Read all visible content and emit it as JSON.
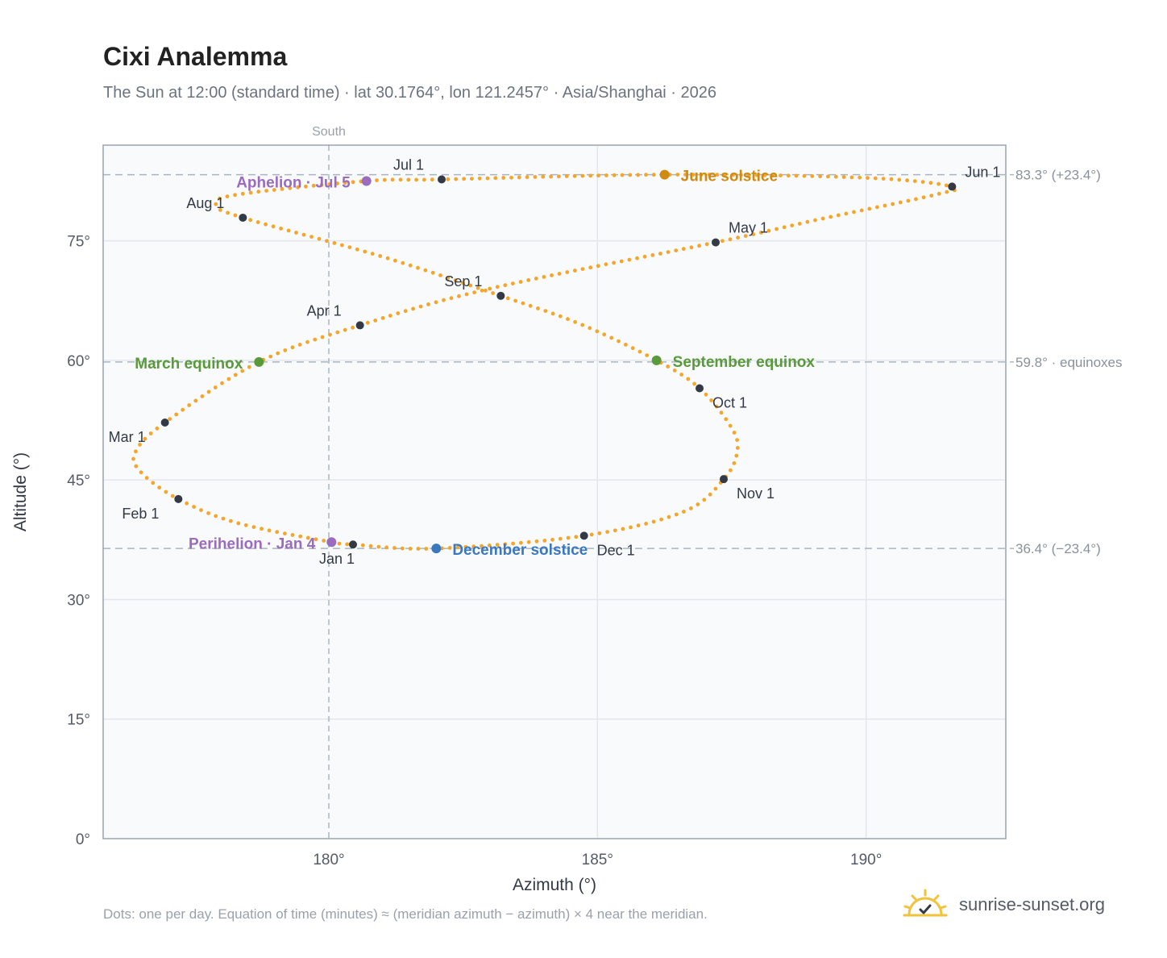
{
  "title": "Cixi Analemma",
  "subtitle": "The Sun at 12:00 (standard time) · lat 30.1764°, lon 121.2457° · Asia/Shanghai · 2026",
  "footnote": "Dots: one per day. Equation of time (minutes) ≈ (meridian azimuth − azimuth) × 4 near the meridian.",
  "brand": {
    "text": "sunrise-sunset.org",
    "icon": "sun-check-icon"
  },
  "colors": {
    "curve": "#f4a52a",
    "month_marker": "#333a45",
    "equinox": "#5a9a3a",
    "june_solstice": "#d08a10",
    "december_solstice": "#3a78c0",
    "apsis": "#9b6bbd",
    "plot_bg": "#f8fafc",
    "grid": "#e3e7ec",
    "ref_line": "#a9b6c1"
  },
  "chart_data": {
    "type": "scatter",
    "title": "Cixi Analemma",
    "xlabel": "Azimuth (°)",
    "ylabel": "Altitude (°)",
    "xlim": [
      175.8,
      192.6
    ],
    "ylim": [
      0,
      87
    ],
    "x_ticks": [
      {
        "value": 180,
        "label": "180°"
      },
      {
        "value": 185,
        "label": "185°"
      },
      {
        "value": 190,
        "label": "190°"
      }
    ],
    "y_ticks": [
      {
        "value": 0,
        "label": "0°"
      },
      {
        "value": 15,
        "label": "15°"
      },
      {
        "value": 30,
        "label": "30°"
      },
      {
        "value": 45,
        "label": "45°"
      },
      {
        "value": 60,
        "label": "60°"
      },
      {
        "value": 75,
        "label": "75°"
      }
    ],
    "grid": true,
    "meridian": {
      "azimuth": 180,
      "label": "South"
    },
    "reference_lines": [
      {
        "altitude": 83.3,
        "label": "83.3° (+23.4°)"
      },
      {
        "altitude": 59.8,
        "label": "59.8° · equinoxes"
      },
      {
        "altitude": 36.4,
        "label": "36.4° (−23.4°)"
      }
    ],
    "month_markers": [
      {
        "label": "Jan 1",
        "az": 180.45,
        "alt": 36.9
      },
      {
        "label": "Feb 1",
        "az": 177.2,
        "alt": 42.6
      },
      {
        "label": "Mar 1",
        "az": 176.95,
        "alt": 52.2
      },
      {
        "label": "Apr 1",
        "az": 180.58,
        "alt": 64.4
      },
      {
        "label": "May 1",
        "az": 187.2,
        "alt": 74.8
      },
      {
        "label": "Jun 1",
        "az": 191.6,
        "alt": 81.8
      },
      {
        "label": "Jul 1",
        "az": 182.1,
        "alt": 82.7
      },
      {
        "label": "Aug 1",
        "az": 178.4,
        "alt": 77.9
      },
      {
        "label": "Sep 1",
        "az": 183.2,
        "alt": 68.1
      },
      {
        "label": "Oct 1",
        "az": 186.9,
        "alt": 56.5
      },
      {
        "label": "Nov 1",
        "az": 187.35,
        "alt": 45.1
      },
      {
        "label": "Dec 1",
        "az": 184.75,
        "alt": 38.0
      }
    ],
    "events": [
      {
        "label": "March equinox",
        "az": 178.7,
        "alt": 59.8,
        "kind": "equinox"
      },
      {
        "label": "September equinox",
        "az": 186.1,
        "alt": 60.0,
        "kind": "equinox"
      },
      {
        "label": "June solstice",
        "az": 186.25,
        "alt": 83.3,
        "kind": "june_solstice"
      },
      {
        "label": "December solstice",
        "az": 182.0,
        "alt": 36.4,
        "kind": "december_solstice"
      },
      {
        "label": "Aphelion · Jul 5",
        "az": 180.7,
        "alt": 82.5,
        "kind": "apsis"
      },
      {
        "label": "Perihelion · Jan 4",
        "az": 180.05,
        "alt": 37.2,
        "kind": "apsis"
      }
    ],
    "curve_anchors": [
      {
        "az": 180.05,
        "alt": 37.2
      },
      {
        "az": 180.45,
        "alt": 36.9
      },
      {
        "az": 182.0,
        "alt": 36.4
      },
      {
        "az": 184.75,
        "alt": 38.0
      },
      {
        "az": 186.6,
        "alt": 41.0
      },
      {
        "az": 187.35,
        "alt": 45.1
      },
      {
        "az": 187.6,
        "alt": 48.5
      },
      {
        "az": 187.5,
        "alt": 51.5
      },
      {
        "az": 186.9,
        "alt": 56.5
      },
      {
        "az": 186.1,
        "alt": 60.0
      },
      {
        "az": 184.7,
        "alt": 64.5
      },
      {
        "az": 183.2,
        "alt": 68.1
      },
      {
        "az": 181.0,
        "alt": 73.0
      },
      {
        "az": 178.4,
        "alt": 77.9
      },
      {
        "az": 177.9,
        "alt": 79.5
      },
      {
        "az": 178.3,
        "alt": 80.8
      },
      {
        "az": 180.7,
        "alt": 82.5
      },
      {
        "az": 182.1,
        "alt": 82.7
      },
      {
        "az": 186.25,
        "alt": 83.3
      },
      {
        "az": 190.0,
        "alt": 82.9
      },
      {
        "az": 191.6,
        "alt": 81.8
      },
      {
        "az": 191.3,
        "alt": 80.8
      },
      {
        "az": 189.2,
        "alt": 77.8
      },
      {
        "az": 187.2,
        "alt": 74.8
      },
      {
        "az": 183.0,
        "alt": 69.0
      },
      {
        "az": 180.58,
        "alt": 64.4
      },
      {
        "az": 178.7,
        "alt": 59.8
      },
      {
        "az": 176.95,
        "alt": 52.2
      },
      {
        "az": 176.4,
        "alt": 48.5
      },
      {
        "az": 176.5,
        "alt": 46.0
      },
      {
        "az": 177.2,
        "alt": 42.6
      },
      {
        "az": 178.3,
        "alt": 39.6
      },
      {
        "az": 180.05,
        "alt": 37.2
      }
    ]
  }
}
